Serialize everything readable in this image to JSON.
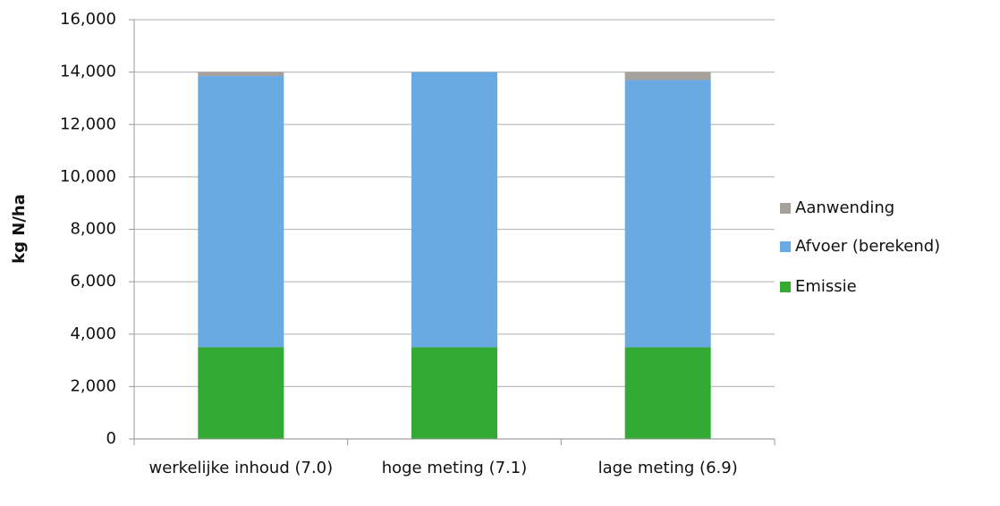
{
  "chart_data": {
    "type": "stacked_bar",
    "y_label": "kg N/ha",
    "categories": [
      "werkelijke inhoud (7.0)",
      "hoge meting (7.1)",
      "lage meting (6.9)"
    ],
    "series": [
      {
        "name": "Emissie",
        "color": "#33aa33",
        "values": [
          3500,
          3500,
          3500
        ]
      },
      {
        "name": "Afvoer (berekend)",
        "color": "#6aaae2",
        "values": [
          10350,
          10500,
          10200
        ]
      },
      {
        "name": "Aanwending",
        "color": "#a6a19b",
        "values": [
          150,
          0,
          300
        ]
      }
    ],
    "ylim": [
      0,
      16000
    ],
    "yticks": [
      0,
      {
        "value": 2000,
        "label": "2,000"
      },
      {
        "value": 4000,
        "label": "4,000"
      },
      {
        "value": 6000,
        "label": "6,000"
      },
      {
        "value": 8000,
        "label": "8,000"
      },
      {
        "value": 10000,
        "label": "10,000"
      },
      {
        "value": 12000,
        "label": "12,000"
      },
      {
        "value": 14000,
        "label": "14,000"
      },
      {
        "value": 16000,
        "label": "16,000"
      }
    ],
    "grid": true,
    "legend": "right"
  }
}
